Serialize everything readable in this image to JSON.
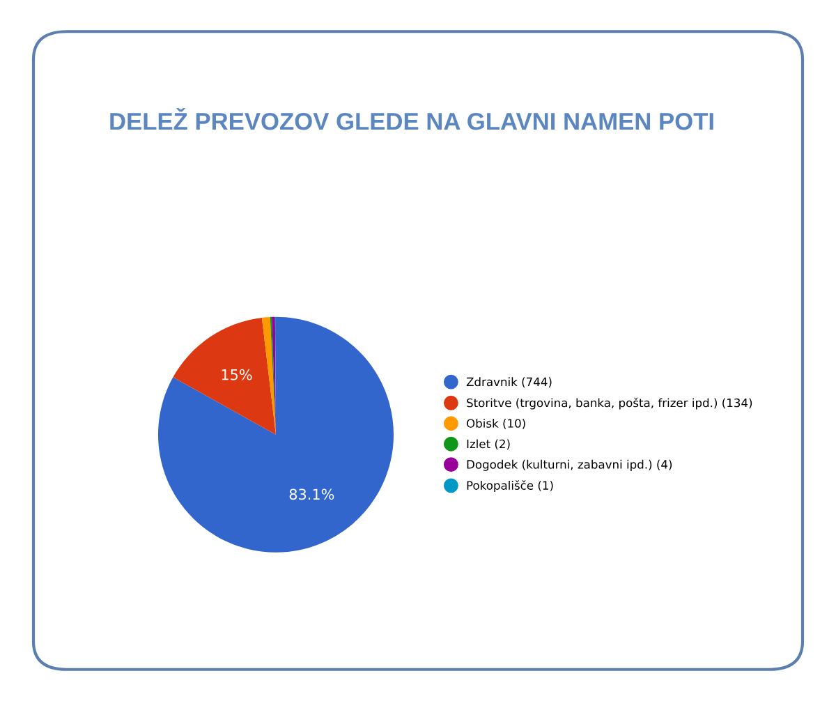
{
  "chart_data": {
    "type": "pie",
    "title": "DELEŽ PREVOZOV GLEDE NA GLAVNI NAMEN POTI",
    "categories": [
      "Zdravnik (744)",
      "Storitve (trgovina, banka, pošta, frizer ipd.) (134)",
      "Obisk (10)",
      "Izlet (2)",
      "Dogodek (kulturni, zabavni ipd.) (4)",
      "Pokopališče (1)"
    ],
    "values": [
      83.1,
      15,
      1.12,
      0.22,
      0.45,
      0.11
    ],
    "colors": [
      "#3366cc",
      "#dc3912",
      "#ff9900",
      "#109618",
      "#990099",
      "#0099c6"
    ],
    "value_labels": [
      "83.1%",
      "15%",
      null,
      null,
      null,
      null
    ],
    "legend": "right"
  }
}
